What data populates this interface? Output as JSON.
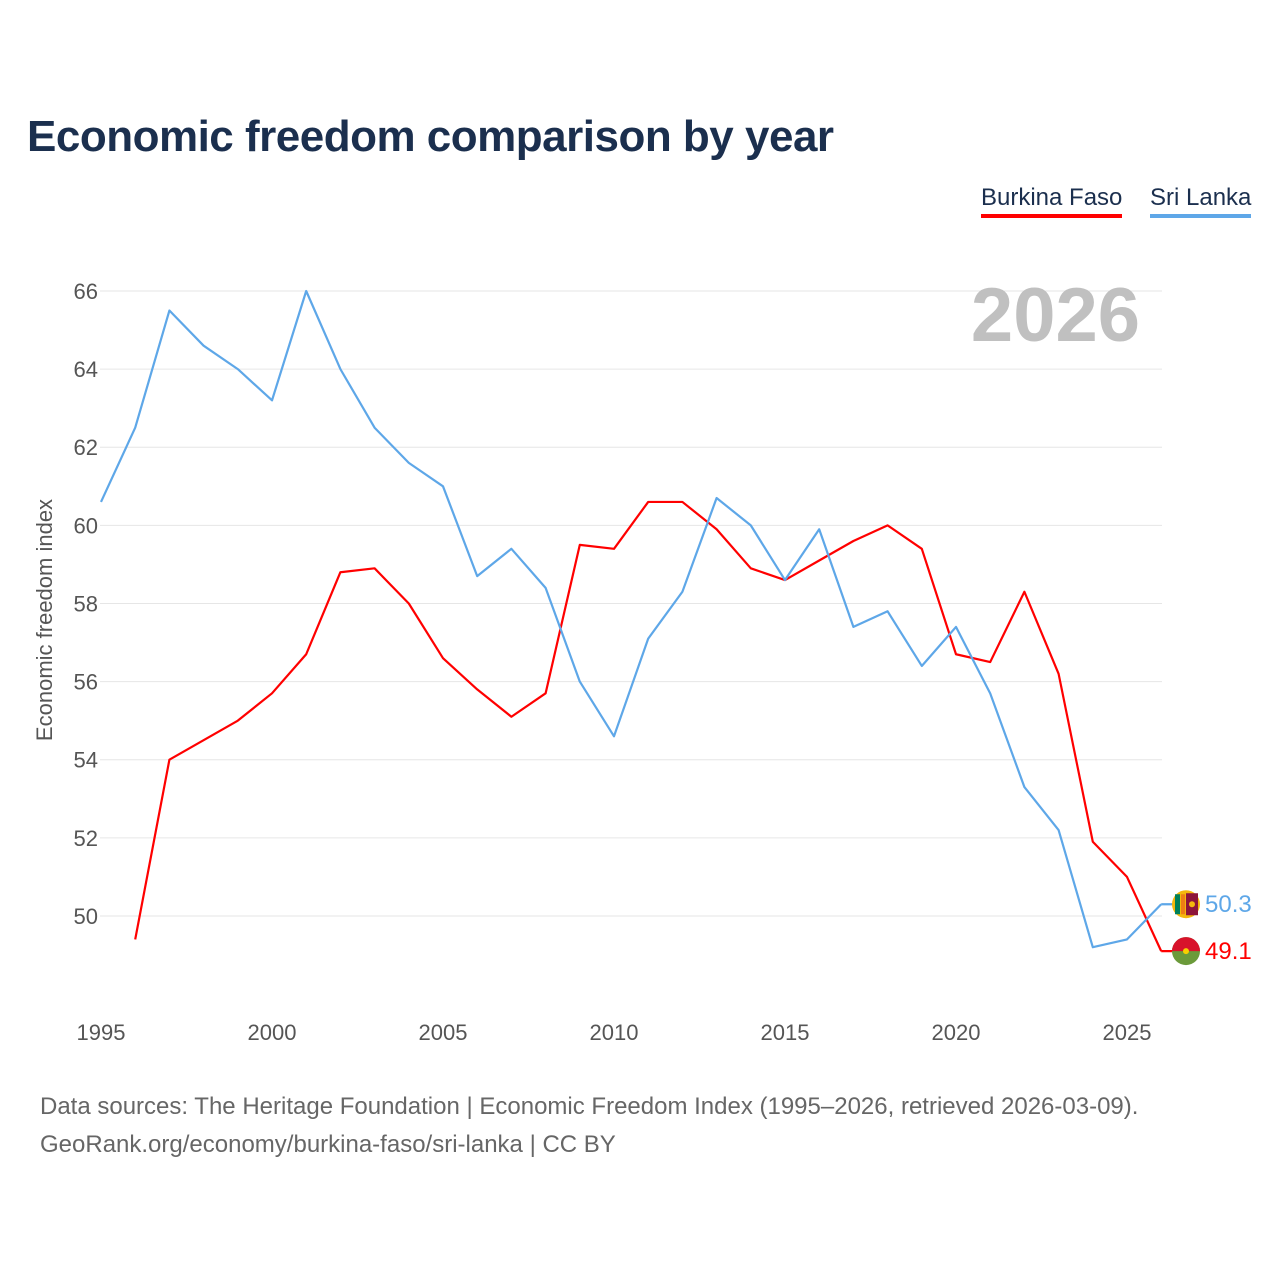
{
  "chart_data": {
    "type": "line",
    "title": "Economic freedom comparison by year",
    "ylabel": "Economic freedom index",
    "xlabel": "",
    "year_label": "2026",
    "ylim": [
      48,
      67
    ],
    "xlim": [
      1995,
      2026
    ],
    "yticks": [
      50,
      52,
      54,
      56,
      58,
      60,
      62,
      64,
      66
    ],
    "xticks": [
      1995,
      2000,
      2005,
      2010,
      2015,
      2020,
      2025
    ],
    "grid": true,
    "legend_position": "top-right",
    "series": [
      {
        "name": "Burkina Faso",
        "color": "#ff0000",
        "end_label": "49.1",
        "x": [
          1996,
          1997,
          1998,
          1999,
          2000,
          2001,
          2002,
          2003,
          2004,
          2005,
          2006,
          2007,
          2008,
          2009,
          2010,
          2011,
          2012,
          2013,
          2014,
          2015,
          2016,
          2017,
          2018,
          2019,
          2020,
          2021,
          2022,
          2023,
          2024,
          2025,
          2026
        ],
        "values": [
          49.4,
          54.0,
          54.5,
          55.0,
          55.7,
          56.7,
          58.8,
          58.9,
          58.0,
          56.6,
          55.8,
          55.1,
          55.7,
          59.5,
          59.4,
          60.6,
          60.6,
          59.9,
          58.9,
          58.6,
          59.1,
          59.6,
          60.0,
          59.4,
          56.7,
          56.5,
          58.3,
          56.2,
          51.9,
          51.0,
          49.1
        ]
      },
      {
        "name": "Sri Lanka",
        "color": "#5ea7e8",
        "end_label": "50.3",
        "x": [
          1995,
          1996,
          1997,
          1998,
          1999,
          2000,
          2001,
          2002,
          2003,
          2004,
          2005,
          2006,
          2007,
          2008,
          2009,
          2010,
          2011,
          2012,
          2013,
          2014,
          2015,
          2016,
          2017,
          2018,
          2019,
          2020,
          2021,
          2022,
          2023,
          2024,
          2025,
          2026
        ],
        "values": [
          60.6,
          62.5,
          65.5,
          64.6,
          64.0,
          63.2,
          66.0,
          64.0,
          62.5,
          61.6,
          61.0,
          58.7,
          59.4,
          58.4,
          56.0,
          54.6,
          57.1,
          58.3,
          60.7,
          60.0,
          58.6,
          59.9,
          57.4,
          57.8,
          56.4,
          57.4,
          55.7,
          53.3,
          52.2,
          49.2,
          49.4,
          50.3
        ]
      }
    ]
  },
  "source": {
    "line1": "Data sources: The Heritage Foundation | Economic Freedom Index (1995–2026, retrieved 2026-03-09).",
    "line2": "GeoRank.org/economy/burkina-faso/sri-lanka | CC BY"
  }
}
